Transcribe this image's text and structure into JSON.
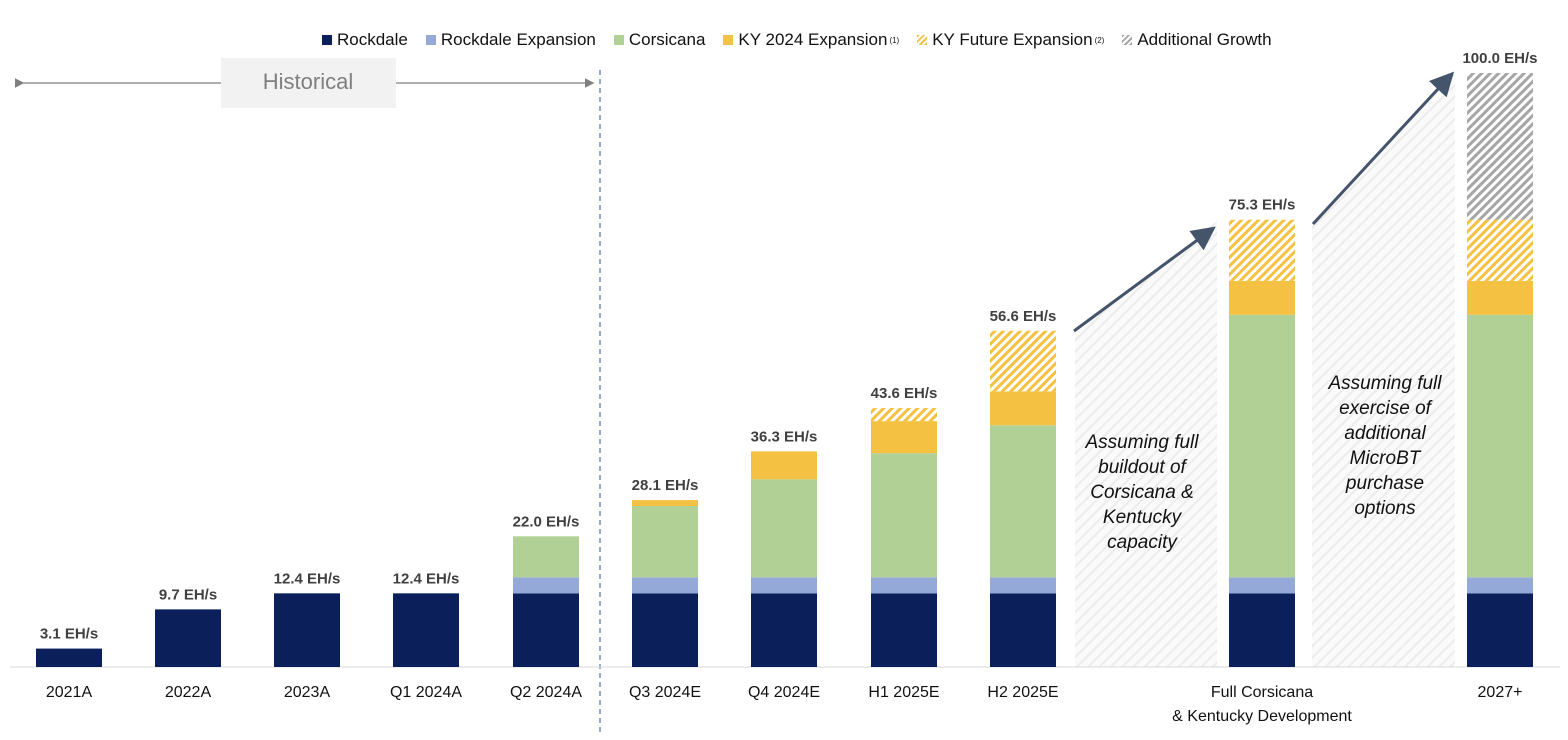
{
  "chart_data": {
    "type": "bar",
    "stacked": true,
    "categories": [
      "2021A",
      "2022A",
      "2023A",
      "Q1 2024A",
      "Q2 2024A",
      "Q3 2024E",
      "Q4 2024E",
      "H1 2025E",
      "H2 2025E",
      "Full Corsicana\n& Kentucky Development",
      "2027+"
    ],
    "category_lines": [
      [
        "2021A"
      ],
      [
        "2022A"
      ],
      [
        "2023A"
      ],
      [
        "Q1 2024A"
      ],
      [
        "Q2 2024A"
      ],
      [
        "Q3 2024E"
      ],
      [
        "Q4 2024E"
      ],
      [
        "H1 2025E"
      ],
      [
        "H2 2025E"
      ],
      [
        "Full Corsicana",
        "& Kentucky Development"
      ],
      [
        "2027+"
      ]
    ],
    "totals": [
      "3.1 EH/s",
      "9.7 EH/s",
      "12.4 EH/s",
      "12.4 EH/s",
      "22.0 EH/s",
      "28.1 EH/s",
      "36.3 EH/s",
      "43.6 EH/s",
      "56.6 EH/s",
      "75.3 EH/s",
      "100.0 EH/s"
    ],
    "series": [
      {
        "name": "Rockdale",
        "color": "#0b1f5b",
        "pattern": "solid",
        "values": [
          3.1,
          9.7,
          12.4,
          12.4,
          12.4,
          12.4,
          12.4,
          12.4,
          12.4,
          12.4,
          12.4
        ]
      },
      {
        "name": "Rockdale Expansion",
        "color": "#95a9d8",
        "pattern": "solid",
        "values": [
          0,
          0,
          0,
          0,
          2.7,
          2.7,
          2.7,
          2.7,
          2.7,
          2.7,
          2.7
        ]
      },
      {
        "name": "Corsicana",
        "color": "#b0d095",
        "pattern": "solid",
        "values": [
          0,
          0,
          0,
          0,
          6.9,
          12.0,
          16.5,
          20.9,
          25.6,
          44.2,
          44.2
        ]
      },
      {
        "name": "KY 2024 Expansion",
        "sup": "(1)",
        "color": "#f4c142",
        "pattern": "solid",
        "values": [
          0,
          0,
          0,
          0,
          0,
          1.0,
          4.7,
          5.4,
          5.7,
          5.7,
          5.7
        ]
      },
      {
        "name": "KY Future Expansion",
        "sup": "(2)",
        "color": "#f4c142",
        "pattern": "hatched",
        "values": [
          0,
          0,
          0,
          0,
          0,
          0,
          0,
          2.2,
          10.2,
          10.3,
          10.3
        ]
      },
      {
        "name": "Additional Growth",
        "color": "#a6a6a6",
        "pattern": "hatched",
        "values": [
          0,
          0,
          0,
          0,
          0,
          0,
          0,
          0,
          0,
          0,
          24.7
        ]
      }
    ],
    "ylim": [
      0,
      100
    ],
    "grid": false,
    "legend_position": "top",
    "annotations": {
      "historical": "Historical",
      "note_1": [
        "Assuming full",
        "buildout of",
        "Corsicana &",
        "Kentucky",
        "capacity"
      ],
      "note_2": [
        "Assuming full",
        "exercise of",
        "additional",
        "MicroBT",
        "purchase",
        "options"
      ]
    }
  }
}
